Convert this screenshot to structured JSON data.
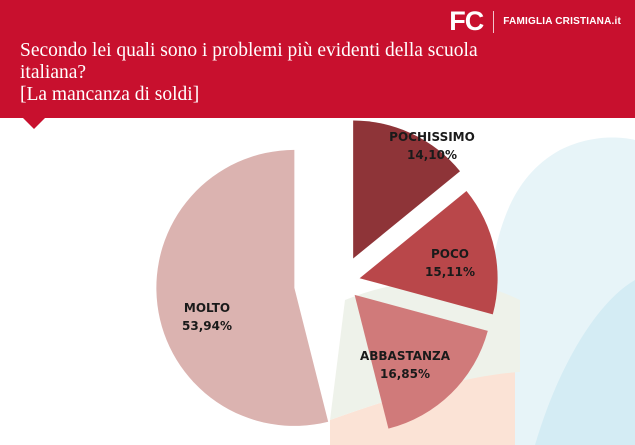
{
  "brand": {
    "logo": "FC",
    "name": "FAMIGLIA CRISTIANA.it"
  },
  "colors": {
    "header": "#c8102e"
  },
  "chart_data": {
    "type": "pie",
    "title_lines": [
      "Secondo lei quali sono i problemi più evidenti della scuola",
      "italiana?",
      "[La mancanza di soldi]"
    ],
    "slices": [
      {
        "label": "POCHISSIMO",
        "value": 14.1,
        "value_label": "14,10%",
        "color": "#8e3438"
      },
      {
        "label": "POCO",
        "value": 15.11,
        "value_label": "15,11%",
        "color": "#b9474a"
      },
      {
        "label": "ABBASTANZA",
        "value": 16.85,
        "value_label": "16,85%",
        "color": "#d07a7a"
      },
      {
        "label": "MOLTO",
        "value": 53.94,
        "value_label": "53,94%",
        "color": "#dbb3b0"
      }
    ]
  }
}
